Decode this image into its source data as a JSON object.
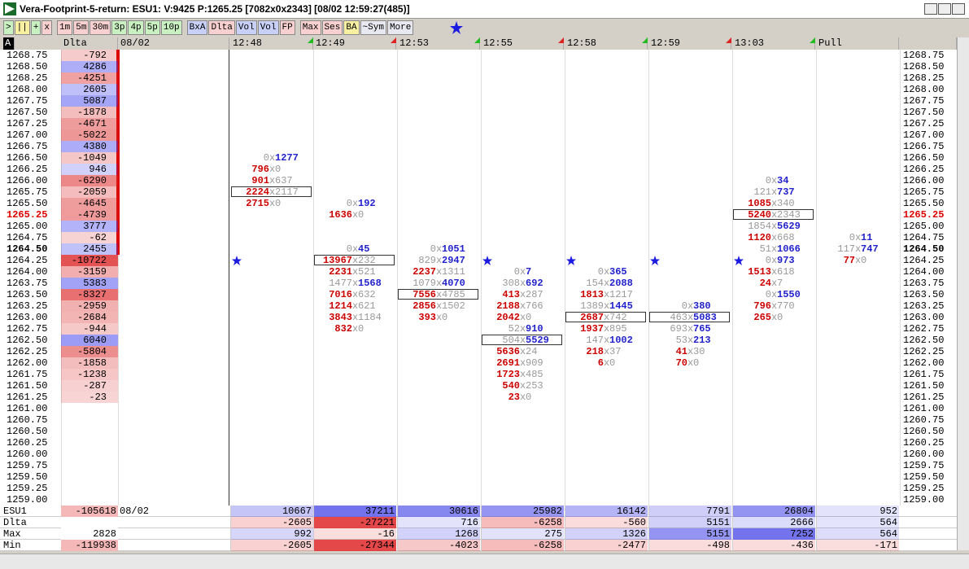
{
  "window": {
    "title": "Vera-Footprint-5-return: ESU1: V:9425 P:1265.25 [7082x0x2343] [08/02 12:59:27(485)]"
  },
  "toolbar": {
    "buttons": [
      {
        "label": ">",
        "color": "#c8f0c0"
      },
      {
        "label": "||",
        "color": "#f8f0a0"
      },
      {
        "label": "+",
        "color": "#c8f0c0"
      },
      {
        "label": "x",
        "color": "#f8d0d0"
      },
      {
        "label": "1m",
        "color": "#f8d0d0"
      },
      {
        "label": "5m",
        "color": "#f8d0d0"
      },
      {
        "label": "30m",
        "color": "#f8d0d0"
      },
      {
        "label": "3p",
        "color": "#c8f0c0"
      },
      {
        "label": "4p",
        "color": "#c8f0c0"
      },
      {
        "label": "5p",
        "color": "#c8f0c0"
      },
      {
        "label": "10p",
        "color": "#c8f0c0"
      },
      {
        "label": "BxA",
        "color": "#c8d0f8"
      },
      {
        "label": "Dlta",
        "color": "#f8d0d0"
      },
      {
        "label": "Vol",
        "color": "#c8d0f8"
      },
      {
        "label": "Vol",
        "color": "#c8d0f8"
      },
      {
        "label": "FP",
        "color": "#f8d0d0"
      },
      {
        "label": "Max",
        "color": "#f8d0d0"
      },
      {
        "label": "Ses",
        "color": "#f8d0d0"
      },
      {
        "label": "BA",
        "color": "#f8f0a0"
      },
      {
        "label": "~Sym",
        "color": "#e8e8f0"
      },
      {
        "label": "More",
        "color": "#e8e8f0"
      }
    ]
  },
  "header": {
    "corner": "A",
    "delta": "Dlta",
    "date": "08/02"
  },
  "prices": [
    "1268.75",
    "1268.50",
    "1268.25",
    "1268.00",
    "1267.75",
    "1267.50",
    "1267.25",
    "1267.00",
    "1266.75",
    "1266.50",
    "1266.25",
    "1266.00",
    "1265.75",
    "1265.50",
    "1265.25",
    "1265.00",
    "1264.75",
    "1264.50",
    "1264.25",
    "1264.00",
    "1263.75",
    "1263.50",
    "1263.25",
    "1263.00",
    "1262.75",
    "1262.50",
    "1262.25",
    "1262.00",
    "1261.75",
    "1261.50",
    "1261.25",
    "1261.00",
    "1260.75",
    "1260.50",
    "1260.25",
    "1260.00",
    "1259.75",
    "1259.50",
    "1259.25",
    "1259.00"
  ],
  "last_price": "1265.25",
  "current_price": "1264.50",
  "delta": [
    -792,
    4286,
    -4251,
    2605,
    5087,
    -1878,
    -4671,
    -5022,
    4380,
    -1049,
    946,
    -6290,
    -2059,
    -4645,
    -4739,
    3777,
    -62,
    2455,
    -10722,
    -3159,
    5383,
    -8327,
    -2959,
    -2684,
    -944,
    6040,
    -5804,
    -1858,
    -1238,
    -287,
    -23
  ],
  "cell_separator": "x",
  "columns": [
    {
      "time": "12:48",
      "flag": "#22bb22",
      "star": "1264.25",
      "cells": [
        {
          "price": "1266.50",
          "bid": 0,
          "ask": 1277
        },
        {
          "price": "1266.25",
          "bid": 796,
          "ask": 0
        },
        {
          "price": "1266.00",
          "bid": 901,
          "ask": 637
        },
        {
          "price": "1265.75",
          "bid": 2224,
          "ask": 2117,
          "boxed": true
        },
        {
          "price": "1265.50",
          "bid": 2715,
          "ask": 0
        }
      ]
    },
    {
      "time": "12:49",
      "flag": "#dd2222",
      "cells": [
        {
          "price": "1265.50",
          "bid": 0,
          "ask": 192
        },
        {
          "price": "1265.25",
          "bid": 1636,
          "ask": 0
        },
        {
          "price": "1264.50",
          "bid": 0,
          "ask": 45
        },
        {
          "price": "1264.25",
          "bid": 13967,
          "ask": 232,
          "boxed": true
        },
        {
          "price": "1264.00",
          "bid": 2231,
          "ask": 521
        },
        {
          "price": "1263.75",
          "bid": 1477,
          "ask": 1568
        },
        {
          "price": "1263.50",
          "bid": 7016,
          "ask": 632
        },
        {
          "price": "1263.25",
          "bid": 1214,
          "ask": 621
        },
        {
          "price": "1263.00",
          "bid": 3843,
          "ask": 1184
        },
        {
          "price": "1262.75",
          "bid": 832,
          "ask": 0
        }
      ]
    },
    {
      "time": "12:53",
      "flag": "#22bb22",
      "cells": [
        {
          "price": "1264.50",
          "bid": 0,
          "ask": 1051
        },
        {
          "price": "1264.25",
          "bid": 829,
          "ask": 2947
        },
        {
          "price": "1264.00",
          "bid": 2237,
          "ask": 1311
        },
        {
          "price": "1263.75",
          "bid": 1079,
          "ask": 4070
        },
        {
          "price": "1263.50",
          "bid": 7556,
          "ask": 4785,
          "boxed": true
        },
        {
          "price": "1263.25",
          "bid": 2856,
          "ask": 1502
        },
        {
          "price": "1263.00",
          "bid": 393,
          "ask": 0
        }
      ]
    },
    {
      "time": "12:55",
      "flag": "#dd2222",
      "star": "1264.25",
      "cells": [
        {
          "price": "1264.00",
          "bid": 0,
          "ask": 7
        },
        {
          "price": "1263.75",
          "bid": 308,
          "ask": 692
        },
        {
          "price": "1263.50",
          "bid": 413,
          "ask": 287
        },
        {
          "price": "1263.25",
          "bid": 2188,
          "ask": 766
        },
        {
          "price": "1263.00",
          "bid": 2042,
          "ask": 0
        },
        {
          "price": "1262.75",
          "bid": 52,
          "ask": 910
        },
        {
          "price": "1262.50",
          "bid": 504,
          "ask": 5529,
          "boxed": true
        },
        {
          "price": "1262.25",
          "bid": 5636,
          "ask": 24
        },
        {
          "price": "1262.00",
          "bid": 2691,
          "ask": 909
        },
        {
          "price": "1261.75",
          "bid": 1723,
          "ask": 485
        },
        {
          "price": "1261.50",
          "bid": 540,
          "ask": 253
        },
        {
          "price": "1261.25",
          "bid": 23,
          "ask": 0
        }
      ]
    },
    {
      "time": "12:58",
      "flag": "#22bb22",
      "star": "1264.25",
      "cells": [
        {
          "price": "1264.00",
          "bid": 0,
          "ask": 365
        },
        {
          "price": "1263.75",
          "bid": 154,
          "ask": 2088
        },
        {
          "price": "1263.50",
          "bid": 1813,
          "ask": 1217
        },
        {
          "price": "1263.25",
          "bid": 1389,
          "ask": 1445
        },
        {
          "price": "1263.00",
          "bid": 2687,
          "ask": 742,
          "boxed": true
        },
        {
          "price": "1262.75",
          "bid": 1937,
          "ask": 895
        },
        {
          "price": "1262.50",
          "bid": 147,
          "ask": 1002
        },
        {
          "price": "1262.25",
          "bid": 218,
          "ask": 37
        },
        {
          "price": "1262.00",
          "bid": 6,
          "ask": 0
        }
      ]
    },
    {
      "time": "12:59",
      "flag": "#dd2222",
      "star": "1264.25",
      "cells": [
        {
          "price": "1263.25",
          "bid": 0,
          "ask": 380
        },
        {
          "price": "1263.00",
          "bid": 463,
          "ask": 5083,
          "boxed": true
        },
        {
          "price": "1262.75",
          "bid": 693,
          "ask": 765
        },
        {
          "price": "1262.50",
          "bid": 53,
          "ask": 213
        },
        {
          "price": "1262.25",
          "bid": 41,
          "ask": 30
        },
        {
          "price": "1262.00",
          "bid": 70,
          "ask": 0
        }
      ]
    },
    {
      "time": "13:03",
      "flag": "#22bb22",
      "star": "1264.25",
      "cells": [
        {
          "price": "1266.00",
          "bid": 0,
          "ask": 34
        },
        {
          "price": "1265.75",
          "bid": 121,
          "ask": 737
        },
        {
          "price": "1265.50",
          "bid": 1085,
          "ask": 340
        },
        {
          "price": "1265.25",
          "bid": 5240,
          "ask": 2343,
          "boxed": true
        },
        {
          "price": "1265.00",
          "bid": 1854,
          "ask": 5629
        },
        {
          "price": "1264.75",
          "bid": 1120,
          "ask": 668
        },
        {
          "price": "1264.50",
          "bid": 51,
          "ask": 1066
        },
        {
          "price": "1264.25",
          "bid": 0,
          "ask": 973
        },
        {
          "price": "1264.00",
          "bid": 1513,
          "ask": 618
        },
        {
          "price": "1263.75",
          "bid": 24,
          "ask": 7
        },
        {
          "price": "1263.50",
          "bid": 0,
          "ask": 1550
        },
        {
          "price": "1263.25",
          "bid": 796,
          "ask": 770
        },
        {
          "price": "1263.00",
          "bid": 265,
          "ask": 0
        }
      ]
    },
    {
      "time": "Pull",
      "cells": [
        {
          "price": "1264.75",
          "bid": 0,
          "ask": 11
        },
        {
          "price": "1264.50",
          "bid": 117,
          "ask": 747
        },
        {
          "price": "1264.25",
          "bid": 77,
          "ask": 0
        }
      ]
    }
  ],
  "summary": {
    "rows": [
      {
        "label": "ESU1",
        "total": -105618,
        "date": "08/02",
        "values": [
          10667,
          37211,
          30616,
          25982,
          16142,
          7791,
          26804,
          952
        ]
      },
      {
        "label": "Dlta",
        "values": [
          -2605,
          -27221,
          716,
          -6258,
          -560,
          5151,
          2666,
          564
        ]
      },
      {
        "label": "Max",
        "total": 2828,
        "values": [
          992,
          -16,
          1268,
          275,
          1326,
          5151,
          7252,
          564
        ]
      },
      {
        "label": "Min",
        "total": -119938,
        "values": [
          -2605,
          -27344,
          -4023,
          -6258,
          -2477,
          -498,
          -436,
          -171
        ]
      }
    ]
  }
}
